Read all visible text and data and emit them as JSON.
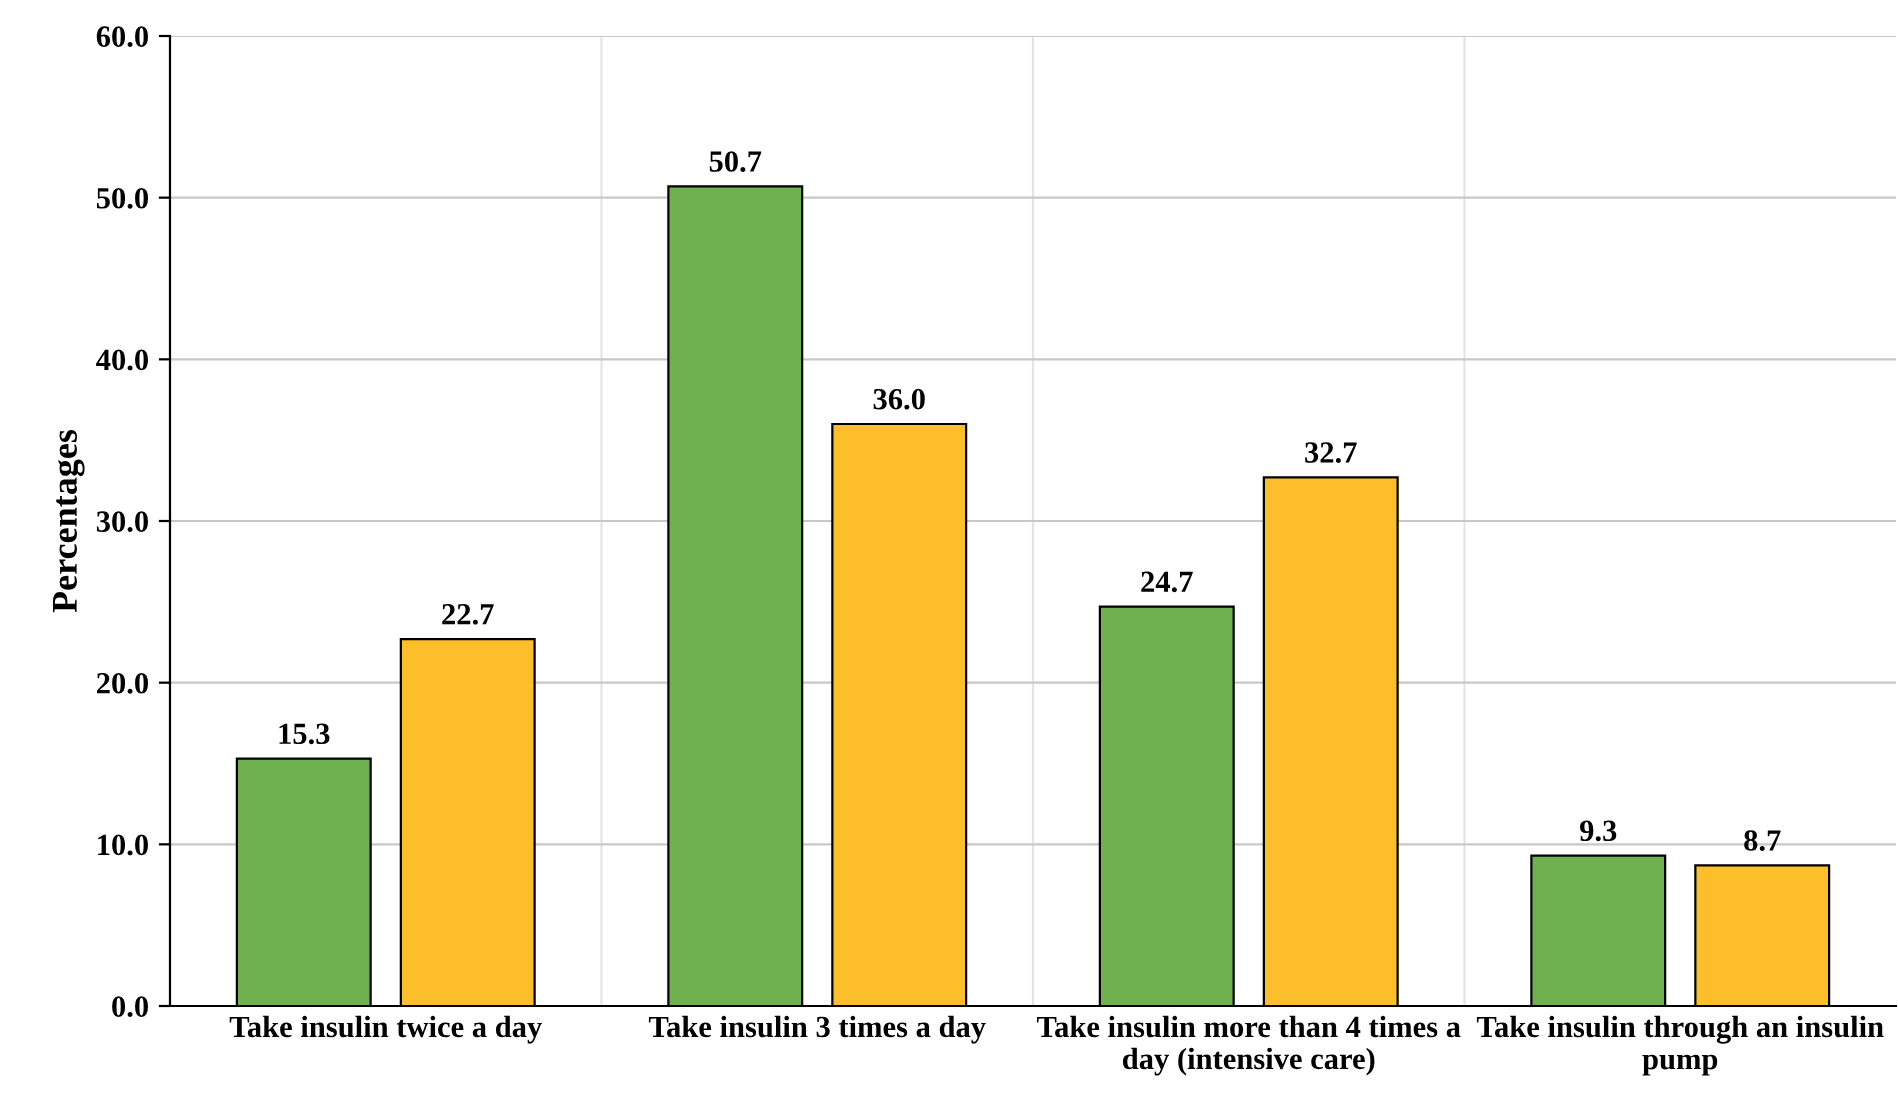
{
  "chart_data": {
    "type": "bar",
    "ylabel": "Percentages",
    "categories": [
      "Take insulin twice a day",
      "Take insulin 3 times a day",
      "Take insulin more than 4 times a day (intensive care)",
      "Take insulin through an insulin pump"
    ],
    "series": [
      {
        "color": "#70b14f",
        "values": [
          15.3,
          50.7,
          24.7,
          9.3
        ],
        "value_labels": [
          "15.3",
          "50.7",
          "24.7",
          "9.3"
        ]
      },
      {
        "color": "#fdbe2c",
        "values": [
          22.7,
          36.0,
          32.7,
          8.7
        ],
        "value_labels": [
          "22.7",
          "36.0",
          "32.7",
          "8.7"
        ]
      }
    ],
    "ylim": [
      0,
      60
    ],
    "yticks": [
      {
        "value": 0,
        "label": "0.0"
      },
      {
        "value": 10,
        "label": "10.0"
      },
      {
        "value": 20,
        "label": "20.0"
      },
      {
        "value": 30,
        "label": "30.0"
      },
      {
        "value": 40,
        "label": "40.0"
      },
      {
        "value": 50,
        "label": "50.0"
      },
      {
        "value": 60,
        "label": "60.0"
      }
    ],
    "grid": true,
    "legend": false
  }
}
